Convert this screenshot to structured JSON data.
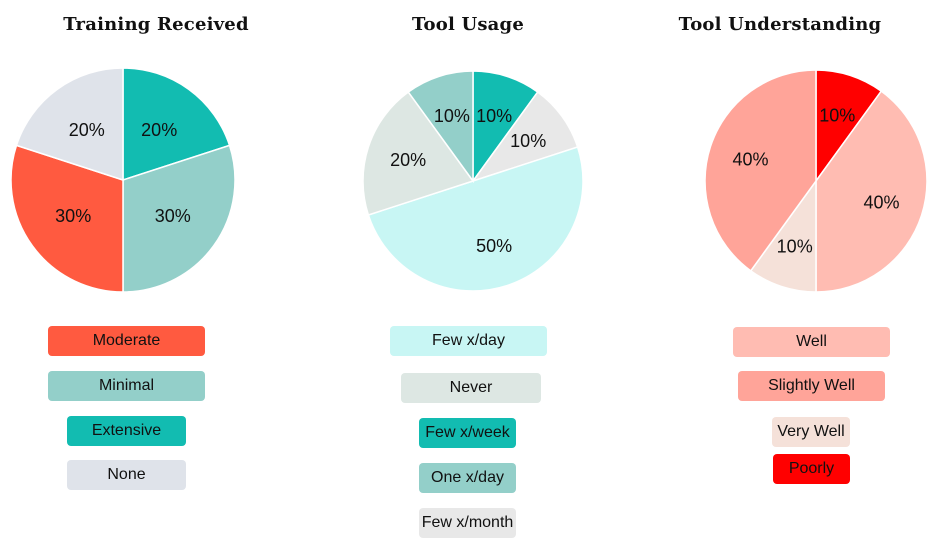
{
  "chart_data": [
    {
      "type": "pie",
      "title": "Training Received",
      "categories": [
        "Moderate",
        "Minimal",
        "Extensive",
        "None"
      ],
      "values": [
        30,
        30,
        20,
        20
      ],
      "labels": [
        "30%",
        "30%",
        "20%",
        "20%"
      ],
      "colors": [
        "#FF5A40",
        "#93CFC9",
        "#12BCB1",
        "#DFE3EA"
      ],
      "order": [
        "Extensive",
        "Minimal",
        "Moderate",
        "None"
      ]
    },
    {
      "type": "pie",
      "title": "Tool Usage",
      "categories": [
        "Few x/day",
        "Never",
        "Few x/week",
        "One x/day",
        "Few x/month"
      ],
      "values": [
        50,
        20,
        10,
        10,
        10
      ],
      "labels": [
        "50%",
        "20%",
        "10%",
        "10%",
        "10%"
      ],
      "colors": [
        "#C8F6F4",
        "#DDE7E3",
        "#12BCB1",
        "#93CFC9",
        "#E8E8E8"
      ],
      "order": [
        "Few x/week",
        "Few x/month",
        "Few x/day",
        "Never",
        "One x/day"
      ]
    },
    {
      "type": "pie",
      "title": "Tool Understanding",
      "categories": [
        "Well",
        "Slightly Well",
        "Very Well",
        "Poorly"
      ],
      "values": [
        40,
        40,
        10,
        10
      ],
      "labels": [
        "40%",
        "40%",
        "10%",
        "10%"
      ],
      "colors": [
        "#FFBCB2",
        "#FFA499",
        "#F5E1D9",
        "#FF0000"
      ],
      "order": [
        "Poorly",
        "Well",
        "Very Well",
        "Slightly Well"
      ]
    }
  ]
}
